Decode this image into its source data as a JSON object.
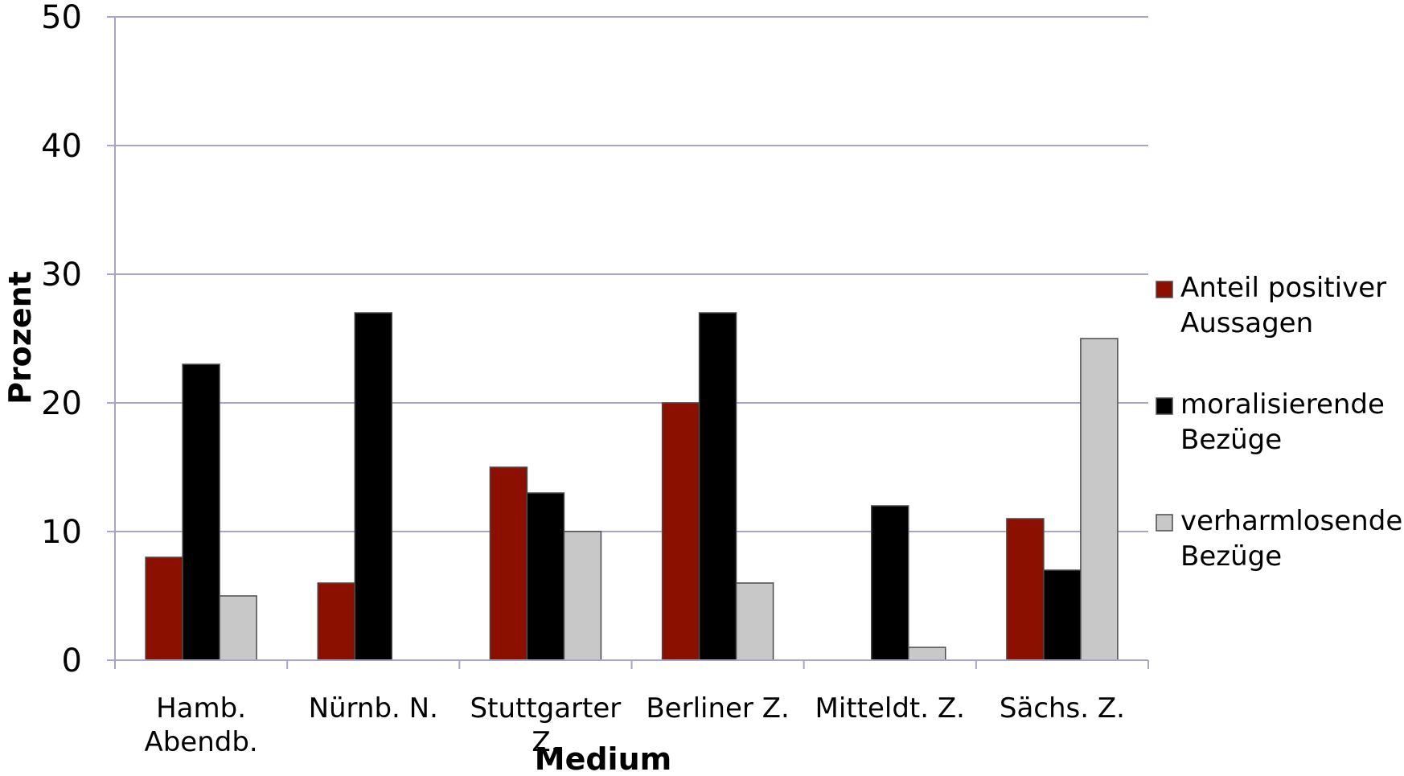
{
  "chart_data": {
    "type": "bar",
    "title": "",
    "xlabel": "Medium",
    "ylabel": "Prozent",
    "ylim": [
      0,
      50
    ],
    "yticks": [
      0,
      10,
      20,
      30,
      40,
      50
    ],
    "grid": true,
    "legend_position": "right",
    "categories": [
      [
        "Hamb.",
        "Abendb."
      ],
      [
        "Nürnb. N."
      ],
      [
        "Stuttgarter",
        "Z."
      ],
      [
        "Berliner Z."
      ],
      [
        "Mitteldt. Z."
      ],
      [
        "Sächs. Z."
      ]
    ],
    "series": [
      {
        "name": [
          "Anteil positiver",
          "Aussagen"
        ],
        "color": "#8B1000",
        "values": [
          8,
          6,
          15,
          20,
          0,
          11
        ]
      },
      {
        "name": [
          "moralisierende",
          "Bezüge"
        ],
        "color": "#000000",
        "values": [
          23,
          27,
          13,
          27,
          12,
          7
        ]
      },
      {
        "name": [
          "verharmlosende",
          "Bezüge"
        ],
        "color": "#C8C8C8",
        "values": [
          5,
          0,
          10,
          6,
          1,
          25
        ]
      }
    ]
  }
}
